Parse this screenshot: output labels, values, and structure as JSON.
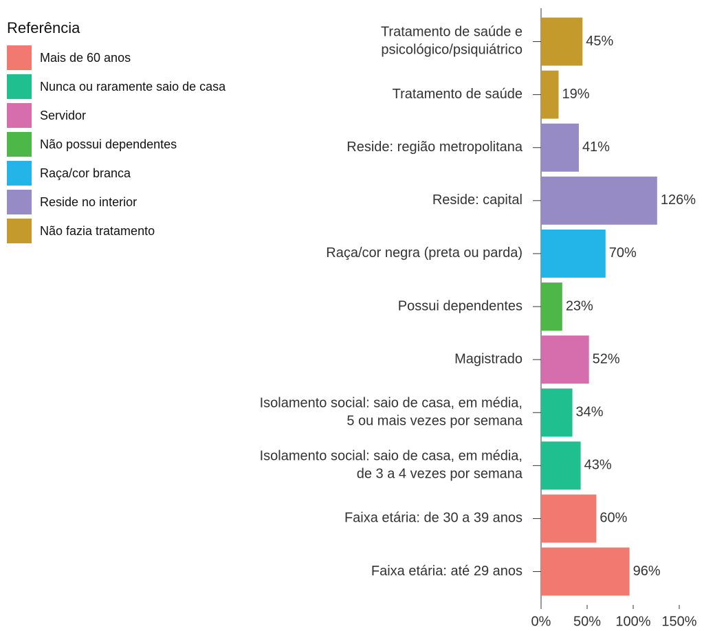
{
  "chart_data": {
    "type": "bar",
    "orientation": "horizontal",
    "categories": [
      "Tratamento de saúde e\npsicológico/psiquiátrico",
      "Tratamento de saúde",
      "Reside: região metropolitana",
      "Reside: capital",
      "Raça/cor negra (preta ou parda)",
      "Possui dependentes",
      "Magistrado",
      "Isolamento social: saio de casa, em média,\n5 ou mais vezes por semana",
      "Isolamento social: saio de casa, em média,\nde 3 a 4 vezes por semana",
      "Faixa etária: de 30 a 39 anos",
      "Faixa etária: até 29 anos"
    ],
    "values": [
      45,
      19,
      41,
      126,
      70,
      23,
      52,
      34,
      43,
      60,
      96
    ],
    "value_labels": [
      "45%",
      "19%",
      "41%",
      "126%",
      "70%",
      "23%",
      "52%",
      "34%",
      "43%",
      "60%",
      "96%"
    ],
    "colors": [
      "#C49A2C",
      "#C49A2C",
      "#968BC4",
      "#968BC4",
      "#24B5E8",
      "#4DB848",
      "#D66EAE",
      "#1FBF8F",
      "#1FBF8F",
      "#F27970",
      "#F27970"
    ],
    "xlim": [
      0,
      150
    ],
    "xticks": [
      {
        "value": 0,
        "label": "0%"
      },
      {
        "value": 50,
        "label": "50%"
      },
      {
        "value": 100,
        "label": "100%"
      },
      {
        "value": 150,
        "label": "150%"
      }
    ],
    "legend": {
      "title": "Referência",
      "items": [
        {
          "name": "Mais de 60 anos",
          "color": "#F27970"
        },
        {
          "name": "Nunca ou raramente saio de casa",
          "color": "#1FBF8F"
        },
        {
          "name": "Servidor",
          "color": "#D66EAE"
        },
        {
          "name": "Não possui dependentes",
          "color": "#4DB848"
        },
        {
          "name": "Raça/cor branca",
          "color": "#24B5E8"
        },
        {
          "name": "Reside no interior",
          "color": "#968BC4"
        },
        {
          "name": "Não fazia tratamento",
          "color": "#C49A2C"
        }
      ]
    }
  }
}
